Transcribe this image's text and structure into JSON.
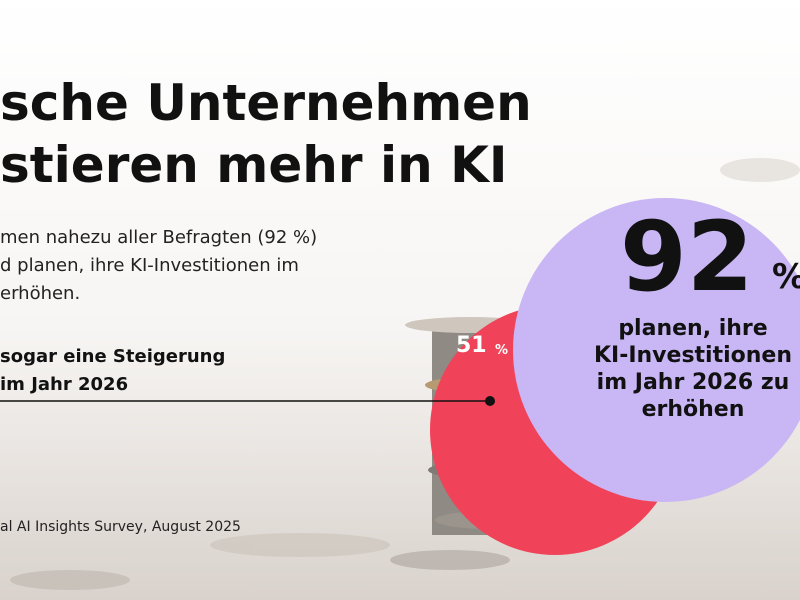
{
  "headline": [
    "sche Unternehmen",
    "stieren mehr in KI"
  ],
  "body": [
    "men nahezu aller Befragten (92 %)",
    "d planen, ihre KI-Investitionen im",
    "erhöhen."
  ],
  "highlight": [
    "sogar eine Steigerung",
    "im Jahr 2026"
  ],
  "source": "al AI Insights Survey, August 2025",
  "small_stat": {
    "value": 51,
    "unit": "%"
  },
  "big_stat": {
    "value": 92,
    "unit": "%",
    "caption": [
      "planen, ihre",
      "KI-Investitionen",
      "im Jahr 2026 zu",
      "erhöhen"
    ]
  }
}
